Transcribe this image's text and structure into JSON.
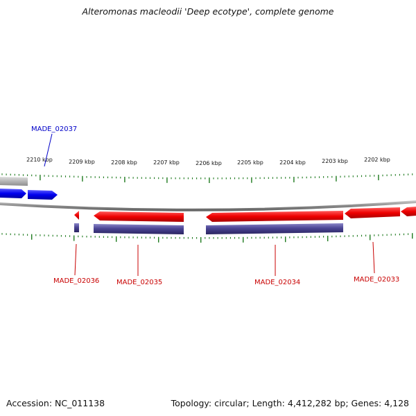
{
  "title": "Alteromonas macleodii 'Deep ecotype', complete genome",
  "accession": "Accession: NC_011138",
  "summary": "Topology: circular; Length: 4,412,282 bp; Genes: 4,128",
  "colors": {
    "forward_gene": "#0000ee",
    "reverse_gene": "#ee0000",
    "cds": "#4b4594",
    "grey_feature": "#b5b5b5",
    "backbone": "#8a8a8a",
    "ticks": "#1e7a1e",
    "forward_label": "#0000c8",
    "reverse_label": "#c80000"
  },
  "scale": {
    "major_labels": [
      "2210 kbp",
      "2209 kbp",
      "2208 kbp",
      "2207 kbp",
      "2206 kbp",
      "2205 kbp",
      "2204 kbp",
      "2203 kbp",
      "2202 kbp"
    ]
  },
  "gene_labels": {
    "made_02037": "MADE_02037",
    "made_02036": "MADE_02036",
    "made_02035": "MADE_02035",
    "made_02034": "MADE_02034",
    "made_02033": "MADE_02033"
  }
}
